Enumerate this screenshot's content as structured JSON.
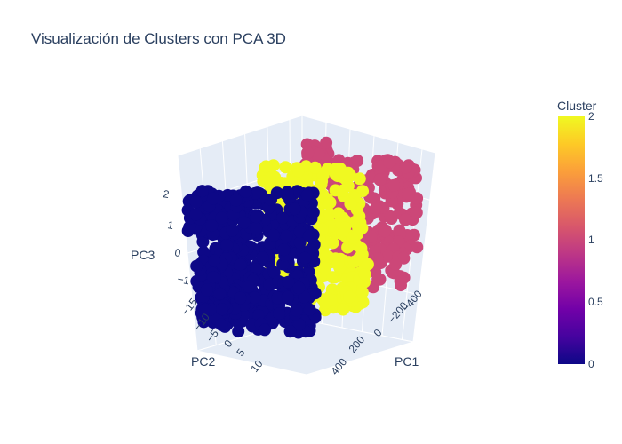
{
  "chart_data": {
    "type": "scatter",
    "title": "Visualización de Clusters con PCA 3D",
    "axes": {
      "x": {
        "label": "PC1",
        "ticks": [
          "400",
          "200",
          "0",
          "−200",
          "−400"
        ]
      },
      "y": {
        "label": "PC2",
        "ticks": [
          "−15",
          "−10",
          "−5",
          "0",
          "5",
          "10"
        ]
      },
      "z": {
        "label": "PC3",
        "ticks": [
          "2",
          "1",
          "0",
          "−1"
        ]
      }
    },
    "colorbar": {
      "title": "Cluster",
      "ticks": [
        "2",
        "1.5",
        "1",
        "0.5",
        "0"
      ],
      "colors": [
        "#0d0887",
        "#46039f",
        "#7201a8",
        "#9c179e",
        "#bd3786",
        "#d8576b",
        "#ed7953",
        "#fb9f3a",
        "#fdca26",
        "#f0f921"
      ]
    },
    "series": [
      {
        "cluster": 0,
        "color": "#0d0887"
      },
      {
        "cluster": 1,
        "color": "#cc4778"
      },
      {
        "cluster": 2,
        "color": "#f0f921"
      }
    ],
    "background": "#e5ecf6",
    "grid": true
  }
}
